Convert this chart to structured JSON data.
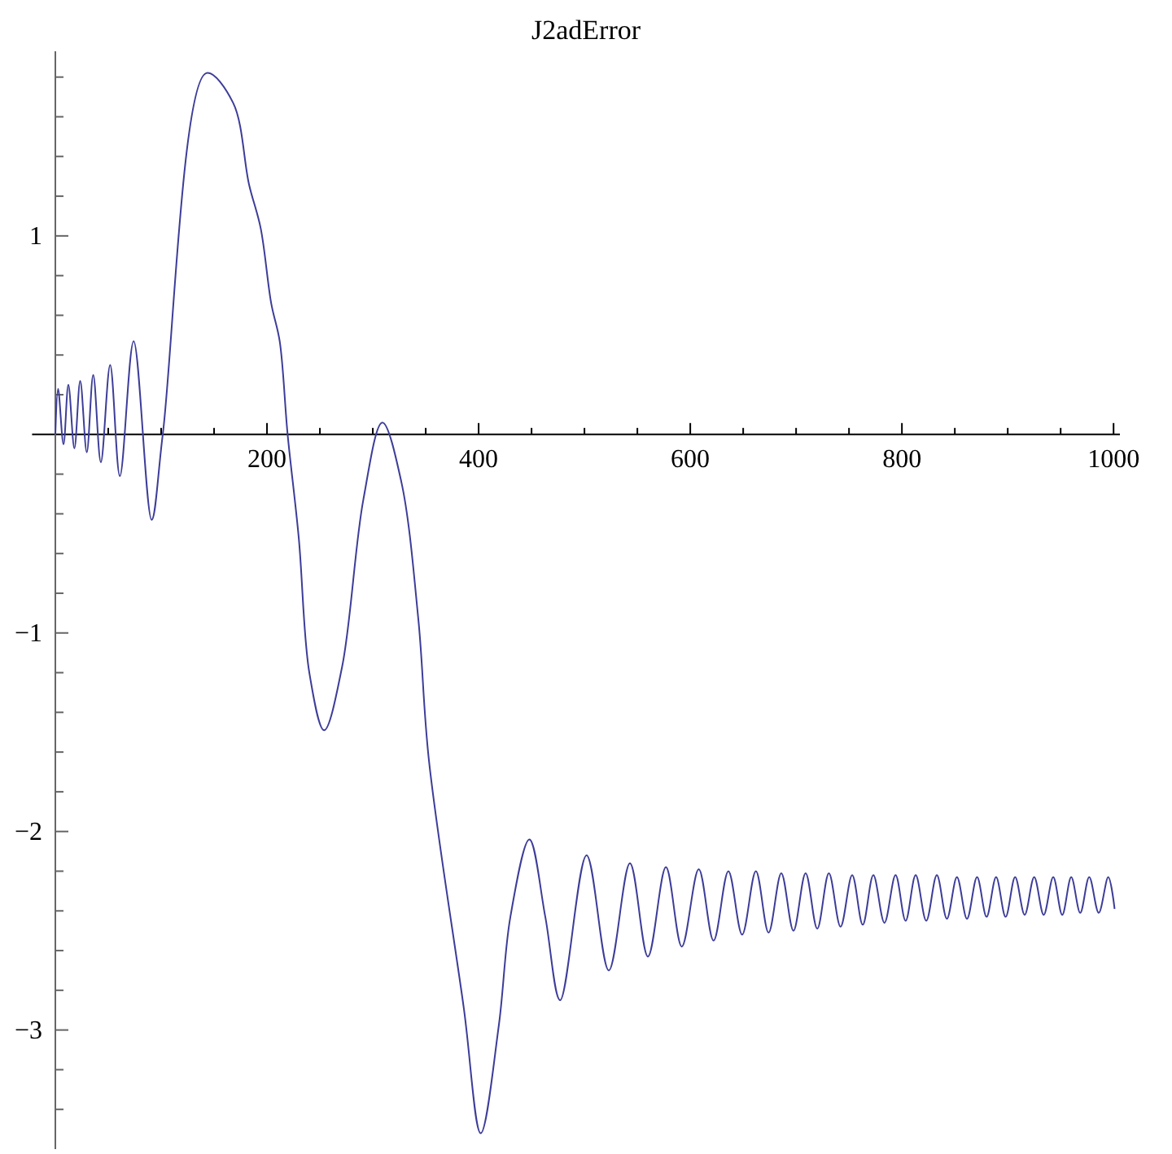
{
  "chart_data": {
    "type": "line",
    "title": "J2adError",
    "xlim": [
      -22,
      1006
    ],
    "ylim": [
      -3.6,
      1.93
    ],
    "xticks": [
      {
        "value": 50,
        "label": null
      },
      {
        "value": 100,
        "label": null
      },
      {
        "value": 150,
        "label": null
      },
      200,
      {
        "value": 250,
        "label": null
      },
      {
        "value": 300,
        "label": null
      },
      {
        "value": 350,
        "label": null
      },
      400,
      {
        "value": 450,
        "label": null
      },
      {
        "value": 500,
        "label": null
      },
      {
        "value": 550,
        "label": null
      },
      600,
      {
        "value": 650,
        "label": null
      },
      {
        "value": 700,
        "label": null
      },
      {
        "value": 750,
        "label": null
      },
      800,
      {
        "value": 850,
        "label": null
      },
      {
        "value": 900,
        "label": null
      },
      {
        "value": 950,
        "label": null
      },
      1000
    ],
    "yticks": [
      {
        "value": -3.4,
        "label": null
      },
      {
        "value": -3.2,
        "label": null
      },
      {
        "value": -3,
        "label": "−3"
      },
      {
        "value": -2.8,
        "label": null
      },
      {
        "value": -2.6,
        "label": null
      },
      {
        "value": -2.4,
        "label": null
      },
      {
        "value": -2.2,
        "label": null
      },
      {
        "value": -2,
        "label": "−2"
      },
      {
        "value": -1.8,
        "label": null
      },
      {
        "value": -1.6,
        "label": null
      },
      {
        "value": -1.4,
        "label": null
      },
      {
        "value": -1.2,
        "label": null
      },
      {
        "value": -1,
        "label": "−1"
      },
      {
        "value": -0.8,
        "label": null
      },
      {
        "value": -0.6,
        "label": null
      },
      {
        "value": -0.4,
        "label": null
      },
      {
        "value": -0.2,
        "label": null
      },
      {
        "value": 0.2,
        "label": null
      },
      {
        "value": 0.4,
        "label": null
      },
      {
        "value": 0.6,
        "label": null
      },
      {
        "value": 0.8,
        "label": null
      },
      1,
      {
        "value": 1.2,
        "label": null
      },
      {
        "value": 1.4,
        "label": null
      },
      {
        "value": 1.6,
        "label": null
      },
      {
        "value": 1.8,
        "label": null
      }
    ],
    "series": [
      {
        "color": "#3d3d99",
        "x": [
          0,
          2.6,
          7.7,
          12.3,
          18,
          23.5,
          29.7,
          35.8,
          43,
          51.8,
          61,
          74,
          91,
          101.5,
          142.6,
          168,
          183,
          194,
          204,
          212,
          219.5,
          230,
          240,
          254,
          271,
          291,
          309,
          327,
          343,
          353,
          386,
          402,
          419,
          430,
          448,
          463,
          477,
          502,
          523,
          543,
          560,
          577,
          592,
          608,
          622,
          636,
          649,
          662,
          674,
          686,
          697.5,
          709,
          720,
          731,
          742,
          753,
          763,
          773,
          783.5,
          794,
          803.5,
          813,
          823,
          833,
          842.5,
          852,
          861.5,
          871,
          880,
          889,
          898,
          907,
          916,
          925,
          934,
          943,
          951.5,
          960,
          968.5,
          977,
          986,
          995,
          1001
        ],
        "values": [
          0,
          0.23,
          -0.05,
          0.25,
          -0.07,
          0.27,
          -0.09,
          0.3,
          -0.14,
          0.35,
          -0.21,
          0.47,
          -0.43,
          0,
          1.82,
          1.67,
          1.26,
          1.04,
          0.66,
          0.47,
          0,
          -0.52,
          -1.2,
          -1.49,
          -1.17,
          -0.33,
          0.06,
          -0.24,
          -0.93,
          -1.64,
          -2.89,
          -3.52,
          -2.98,
          -2.43,
          -2.04,
          -2.43,
          -2.85,
          -2.12,
          -2.7,
          -2.16,
          -2.63,
          -2.18,
          -2.58,
          -2.19,
          -2.55,
          -2.2,
          -2.52,
          -2.2,
          -2.51,
          -2.21,
          -2.5,
          -2.21,
          -2.49,
          -2.21,
          -2.48,
          -2.22,
          -2.47,
          -2.22,
          -2.46,
          -2.22,
          -2.45,
          -2.22,
          -2.45,
          -2.22,
          -2.44,
          -2.23,
          -2.44,
          -2.23,
          -2.43,
          -2.23,
          -2.43,
          -2.23,
          -2.42,
          -2.23,
          -2.42,
          -2.23,
          -2.42,
          -2.23,
          -2.41,
          -2.23,
          -2.41,
          -2.23,
          -2.39
        ]
      }
    ]
  }
}
